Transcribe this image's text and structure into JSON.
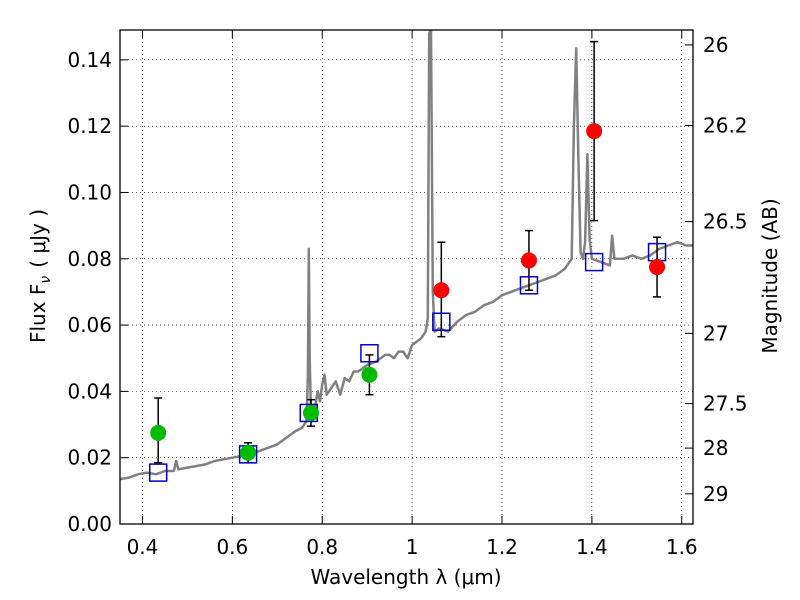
{
  "chart_data": {
    "type": "scatter",
    "xlabel": "Wavelength  λ (μm)",
    "ylabel_left": "Flux  F",
    "ylabel_left_sub": "ν",
    "ylabel_left_unit": "( μJy )",
    "ylabel_right": "Magnitude (AB)",
    "xlim": [
      0.35,
      1.625
    ],
    "ylim": [
      0.0,
      0.149
    ],
    "grid": true,
    "x_ticks": [
      {
        "value": 0.4,
        "label": "0.4"
      },
      {
        "value": 0.6,
        "label": "0.6"
      },
      {
        "value": 0.8,
        "label": "0.8"
      },
      {
        "value": 1.0,
        "label": "1"
      },
      {
        "value": 1.2,
        "label": "1.2"
      },
      {
        "value": 1.4,
        "label": "1.4"
      },
      {
        "value": 1.6,
        "label": "1.6"
      }
    ],
    "y_ticks": [
      {
        "value": 0.0,
        "label": "0.00"
      },
      {
        "value": 0.02,
        "label": "0.02"
      },
      {
        "value": 0.04,
        "label": "0.04"
      },
      {
        "value": 0.06,
        "label": "0.06"
      },
      {
        "value": 0.08,
        "label": "0.08"
      },
      {
        "value": 0.1,
        "label": "0.10"
      },
      {
        "value": 0.12,
        "label": "0.12"
      },
      {
        "value": 0.14,
        "label": "0.14"
      }
    ],
    "right_ticks": [
      {
        "flux": 0.1445,
        "label": "26"
      },
      {
        "flux": 0.1202,
        "label": "26.2"
      },
      {
        "flux": 0.0912,
        "label": "26.5"
      },
      {
        "flux": 0.0575,
        "label": "27"
      },
      {
        "flux": 0.0363,
        "label": "27.5"
      },
      {
        "flux": 0.0229,
        "label": "28"
      },
      {
        "flux": 0.0091,
        "label": "29"
      }
    ],
    "template_spectrum": {
      "color": "#808080",
      "points": [
        [
          0.35,
          0.0135
        ],
        [
          0.37,
          0.014
        ],
        [
          0.39,
          0.015
        ],
        [
          0.41,
          0.0155
        ],
        [
          0.43,
          0.015
        ],
        [
          0.45,
          0.016
        ],
        [
          0.47,
          0.016
        ],
        [
          0.475,
          0.019
        ],
        [
          0.48,
          0.0165
        ],
        [
          0.5,
          0.017
        ],
        [
          0.52,
          0.0175
        ],
        [
          0.54,
          0.018
        ],
        [
          0.56,
          0.019
        ],
        [
          0.58,
          0.0195
        ],
        [
          0.6,
          0.02
        ],
        [
          0.62,
          0.0205
        ],
        [
          0.64,
          0.021
        ],
        [
          0.66,
          0.022
        ],
        [
          0.68,
          0.023
        ],
        [
          0.7,
          0.024
        ],
        [
          0.72,
          0.026
        ],
        [
          0.74,
          0.028
        ],
        [
          0.755,
          0.029
        ],
        [
          0.765,
          0.031
        ],
        [
          0.768,
          0.045
        ],
        [
          0.77,
          0.083
        ],
        [
          0.772,
          0.05
        ],
        [
          0.775,
          0.033
        ],
        [
          0.785,
          0.036
        ],
        [
          0.79,
          0.04
        ],
        [
          0.795,
          0.037
        ],
        [
          0.8,
          0.042
        ],
        [
          0.805,
          0.045
        ],
        [
          0.81,
          0.039
        ],
        [
          0.82,
          0.041
        ],
        [
          0.83,
          0.043
        ],
        [
          0.84,
          0.039
        ],
        [
          0.85,
          0.044
        ],
        [
          0.86,
          0.043
        ],
        [
          0.87,
          0.046
        ],
        [
          0.88,
          0.046
        ],
        [
          0.89,
          0.047
        ],
        [
          0.9,
          0.048
        ],
        [
          0.92,
          0.049
        ],
        [
          0.94,
          0.051
        ],
        [
          0.95,
          0.051
        ],
        [
          0.96,
          0.05
        ],
        [
          0.97,
          0.052
        ],
        [
          0.98,
          0.052
        ],
        [
          0.99,
          0.05
        ],
        [
          1.0,
          0.054
        ],
        [
          1.01,
          0.055
        ],
        [
          1.02,
          0.056
        ],
        [
          1.03,
          0.058
        ],
        [
          1.035,
          0.062
        ],
        [
          1.038,
          0.148
        ],
        [
          1.042,
          0.149
        ],
        [
          1.046,
          0.07
        ],
        [
          1.05,
          0.058
        ],
        [
          1.06,
          0.059
        ],
        [
          1.08,
          0.058
        ],
        [
          1.1,
          0.061
        ],
        [
          1.12,
          0.063
        ],
        [
          1.14,
          0.064
        ],
        [
          1.16,
          0.066
        ],
        [
          1.18,
          0.067
        ],
        [
          1.2,
          0.069
        ],
        [
          1.22,
          0.07
        ],
        [
          1.24,
          0.071
        ],
        [
          1.26,
          0.072
        ],
        [
          1.28,
          0.073
        ],
        [
          1.3,
          0.074
        ],
        [
          1.32,
          0.075
        ],
        [
          1.34,
          0.077
        ],
        [
          1.355,
          0.08
        ],
        [
          1.36,
          0.12
        ],
        [
          1.365,
          0.1435
        ],
        [
          1.37,
          0.11
        ],
        [
          1.375,
          0.082
        ],
        [
          1.38,
          0.08
        ],
        [
          1.385,
          0.085
        ],
        [
          1.39,
          0.1115
        ],
        [
          1.395,
          0.086
        ],
        [
          1.4,
          0.08
        ],
        [
          1.42,
          0.079
        ],
        [
          1.44,
          0.078
        ],
        [
          1.445,
          0.087
        ],
        [
          1.45,
          0.08
        ],
        [
          1.47,
          0.08
        ],
        [
          1.49,
          0.081
        ],
        [
          1.51,
          0.08
        ],
        [
          1.53,
          0.081
        ],
        [
          1.55,
          0.083
        ],
        [
          1.57,
          0.084
        ],
        [
          1.59,
          0.085
        ],
        [
          1.61,
          0.084
        ],
        [
          1.625,
          0.084
        ]
      ]
    },
    "observed_points": [
      {
        "x": 0.435,
        "y": 0.0275,
        "err_low": 0.0185,
        "err_high": 0.038,
        "color": "#00bb00"
      },
      {
        "x": 0.635,
        "y": 0.0215,
        "err_low": 0.0185,
        "err_high": 0.0245,
        "color": "#00bb00"
      },
      {
        "x": 0.775,
        "y": 0.0335,
        "err_low": 0.0295,
        "err_high": 0.0375,
        "color": "#00bb00"
      },
      {
        "x": 0.905,
        "y": 0.045,
        "err_low": 0.039,
        "err_high": 0.051,
        "color": "#00bb00"
      },
      {
        "x": 1.065,
        "y": 0.0705,
        "err_low": 0.0565,
        "err_high": 0.085,
        "color": "#ff0000"
      },
      {
        "x": 1.26,
        "y": 0.0795,
        "err_low": 0.0705,
        "err_high": 0.0885,
        "color": "#ff0000"
      },
      {
        "x": 1.405,
        "y": 0.1185,
        "err_low": 0.0915,
        "err_high": 0.1455,
        "color": "#ff0000"
      },
      {
        "x": 1.545,
        "y": 0.0775,
        "err_low": 0.0685,
        "err_high": 0.0865,
        "color": "#ff0000"
      }
    ],
    "model_points": [
      {
        "x": 0.435,
        "y": 0.0155
      },
      {
        "x": 0.635,
        "y": 0.021
      },
      {
        "x": 0.77,
        "y": 0.0335
      },
      {
        "x": 0.905,
        "y": 0.0515
      },
      {
        "x": 1.065,
        "y": 0.061
      },
      {
        "x": 1.26,
        "y": 0.072
      },
      {
        "x": 1.405,
        "y": 0.079
      },
      {
        "x": 1.545,
        "y": 0.082
      }
    ],
    "model_marker_color": "#0000cc"
  }
}
